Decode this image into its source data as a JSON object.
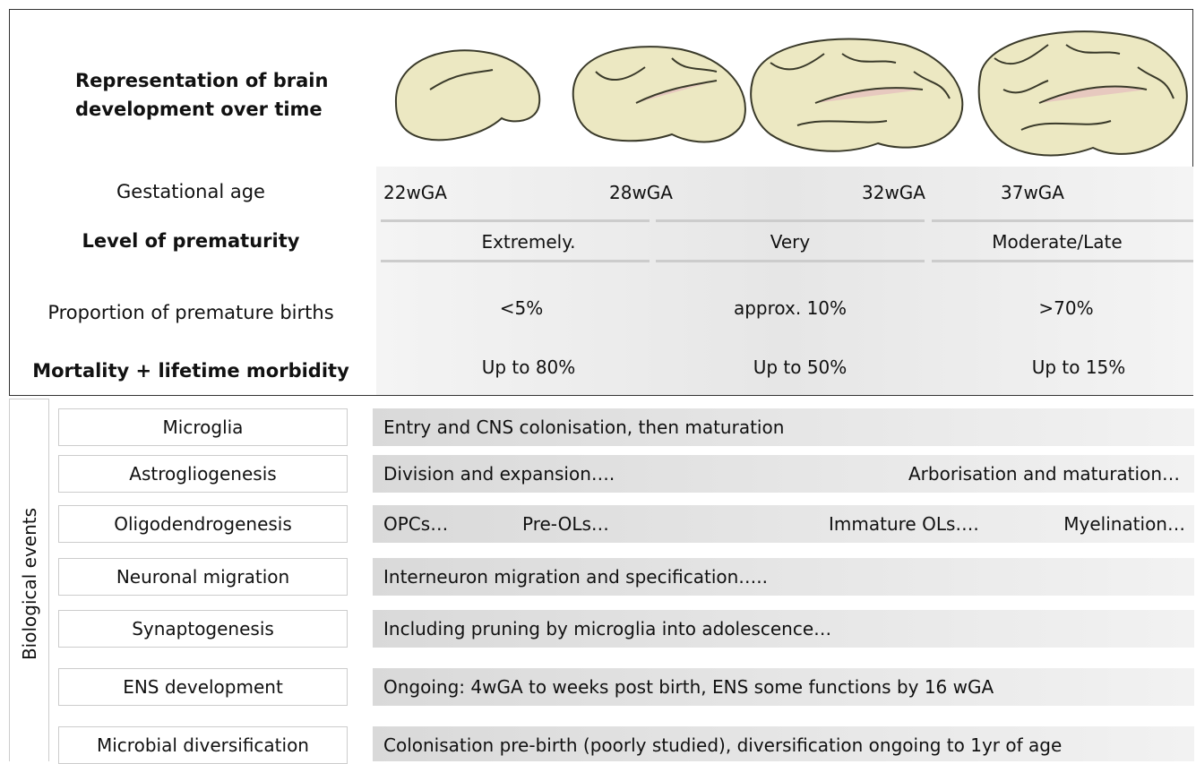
{
  "header": {
    "label": "Representation of brain development over time"
  },
  "gestational_age": {
    "label": "Gestational age",
    "ticks": [
      "22wGA",
      "28wGA",
      "32wGA",
      "37wGA"
    ]
  },
  "prematurity": {
    "label": "Level of prematurity",
    "levels": [
      "Extremely.",
      "Very",
      "Moderate/Late"
    ]
  },
  "proportion": {
    "label": "Proportion of premature births",
    "values": [
      "<5%",
      "approx. 10%",
      ">70%"
    ]
  },
  "mortality": {
    "label": "Mortality + lifetime morbidity",
    "values": [
      "Up to 80%",
      "Up to 50%",
      "Up to 15%"
    ]
  },
  "biological_events": {
    "title": "Biological events",
    "rows": [
      {
        "name": "Microglia",
        "notes": [
          "Entry and CNS colonisation, then maturation"
        ]
      },
      {
        "name": "Astrogliogenesis",
        "notes": [
          "Division and expansion….",
          "Arborisation and maturation…"
        ]
      },
      {
        "name": "Oligodendrogenesis",
        "notes": [
          "OPCs…",
          "Pre-OLs…",
          "Immature OLs….",
          "Myelination…"
        ]
      },
      {
        "name": "Neuronal migration",
        "notes": [
          "Interneuron migration and specification….."
        ]
      },
      {
        "name": "Synaptogenesis",
        "notes": [
          "Including pruning by microglia into adolescence…"
        ]
      },
      {
        "name": "ENS development",
        "notes": [
          "Ongoing: 4wGA to weeks post birth, ENS some functions by 16 wGA"
        ]
      },
      {
        "name": "Microbial diversification",
        "notes": [
          "Colonisation pre-birth (poorly studied), diversification ongoing to 1yr of age"
        ]
      }
    ]
  }
}
